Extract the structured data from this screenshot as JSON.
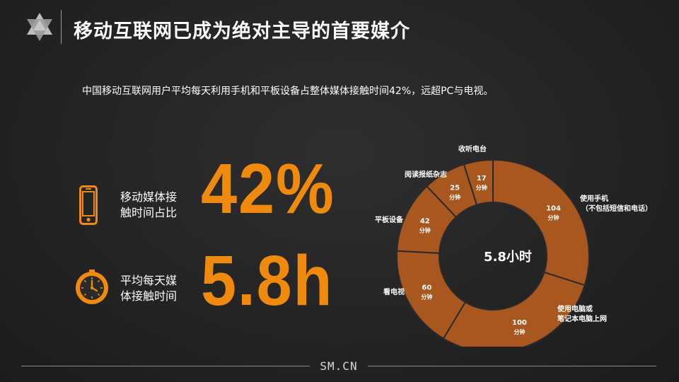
{
  "header": {
    "title": "移动互联网已成为绝对主导的首要媒介"
  },
  "summary": "中国移动互联网用户平均每天利用手机和平板设备占整体媒体接触时间42%，远超PC与电视。",
  "kpis": [
    {
      "label_line1": "移动媒体接",
      "label_line2": "触时间占比",
      "value": "42%",
      "icon": "smartphone-icon"
    },
    {
      "label_line1": "平均每天媒",
      "label_line2": "体接触时间",
      "value": "5.8h",
      "icon": "clock-icon"
    }
  ],
  "footer": {
    "brand": "SM.CN"
  },
  "colors": {
    "accent": "#f08a0c",
    "donut_fill": "#a8581e",
    "separator": "#2a2a2a"
  },
  "chart_data": {
    "type": "pie",
    "center_label": "5.8小时",
    "unit": "分钟",
    "slices": [
      {
        "category": "使用手机",
        "category_note": "（不包括短信和电话）",
        "value": 104,
        "value_label": "104"
      },
      {
        "category": "使用电脑或",
        "category_note": "笔记本电脑上网",
        "value": 100,
        "value_label": "100"
      },
      {
        "category": "看电视",
        "category_note": "",
        "value": 60,
        "value_label": "60"
      },
      {
        "category": "平板设备",
        "category_note": "",
        "value": 42,
        "value_label": "42"
      },
      {
        "category": "阅读报纸杂志",
        "category_note": "",
        "value": 25,
        "value_label": "25"
      },
      {
        "category": "收听电台",
        "category_note": "",
        "value": 17,
        "value_label": "17"
      }
    ]
  }
}
